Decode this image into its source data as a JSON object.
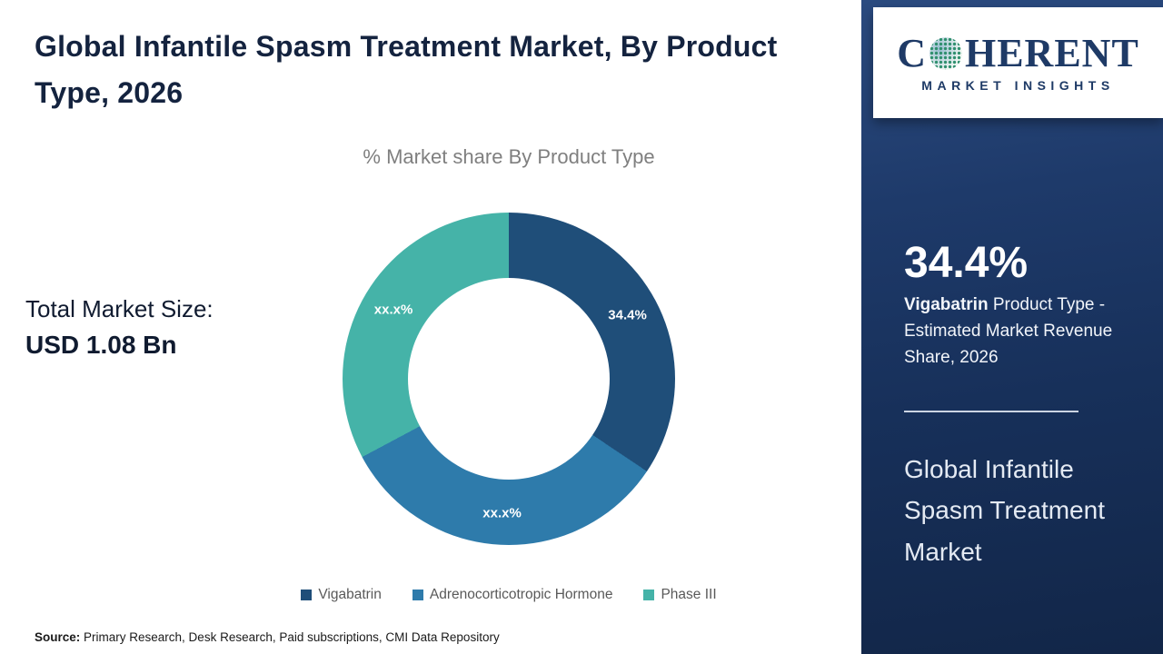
{
  "header": {
    "title": "Global Infantile Spasm Treatment Market, By Product Type, 2026"
  },
  "market_size": {
    "label": "Total Market Size:",
    "value": "USD 1.08 Bn"
  },
  "source": {
    "label": "Source:",
    "text": "Primary Research, Desk Research, Paid subscriptions, CMI Data Repository"
  },
  "brand": {
    "name_first": "C",
    "name_rest": "HERENT",
    "tagline": "MARKET INSIGHTS"
  },
  "sidebar": {
    "panel_color": "#1c3a68",
    "stat_value": "34.4%",
    "stat_bold": "Vigabatrin",
    "stat_rest": "Product Type - Estimated Market Revenue Share, 2026",
    "market_name": "Global Infantile Spasm Treatment Market"
  },
  "chart_data": {
    "type": "pie",
    "subtype": "donut",
    "title": "% Market share By Product Type",
    "categories": [
      "Vigabatrin",
      "Adrenocorticotropic Hormone",
      "Phase III"
    ],
    "values": [
      34.4,
      32.8,
      32.8
    ],
    "value_labels": [
      "34.4%",
      "xx.x%",
      "xx.x%"
    ],
    "colors": [
      "#1f4e79",
      "#2e7bab",
      "#45b3a8"
    ],
    "start_angle_deg": 0,
    "legend_position": "bottom",
    "label_color": "#ffffff"
  }
}
